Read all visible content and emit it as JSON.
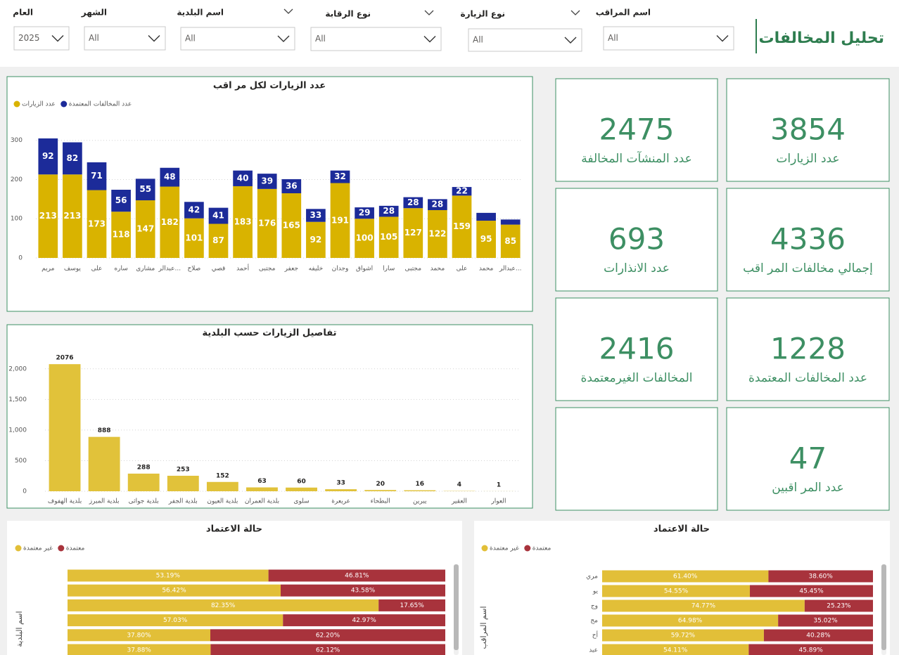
{
  "header": {
    "title": "تحليل المخالفات"
  },
  "filters": [
    {
      "label": "اسم المراقب",
      "value": "All"
    },
    {
      "label": "نوع الزيارة",
      "value": "All"
    },
    {
      "label": "نوع الرقابة",
      "value": "All"
    },
    {
      "label": "اسم البلدية",
      "value": "All"
    },
    {
      "label": "الشهر",
      "value": "All"
    },
    {
      "label": "العام",
      "value": "2025"
    }
  ],
  "cards": [
    {
      "value": 3854,
      "label": "عدد الزيارات"
    },
    {
      "value": 2475,
      "label": "عدد المنشآت المخالفة"
    },
    {
      "value": 4336,
      "label": "إجمالي مخالفات المر اقب"
    },
    {
      "value": 693,
      "label": "عدد الانذارات"
    },
    {
      "value": 1228,
      "label": "عدد المخالفات المعتمدة"
    },
    {
      "value": 2416,
      "label": "المخالفات الغيرمعتمدة"
    },
    {
      "value": 47,
      "label": "عدد المر اقبين"
    }
  ],
  "chart_data": [
    {
      "type": "bar",
      "title": "عدد الزيارات لكل مر اقب",
      "stacked": true,
      "grid": true,
      "categories": [
        "مريم",
        "يوسف",
        "على",
        "ساره",
        "مشارى",
        "عبدالر...",
        "صلاح",
        "قصي",
        "أحمد",
        "مجتبى",
        "جعفر",
        "خليفه",
        "وجدان",
        "اشواق",
        "سارا",
        "مجتبى",
        "محمد",
        "على",
        "محمد",
        "عبدالر..."
      ],
      "series": [
        {
          "name": "عدد الزيارات",
          "color": "#d9b300",
          "values": [
            213,
            213,
            173,
            118,
            147,
            182,
            101,
            87,
            183,
            176,
            165,
            92,
            191,
            100,
            105,
            127,
            122,
            159,
            95,
            85
          ]
        },
        {
          "name": "عدد المخالفات المعتمدة",
          "color": "#1c2b99",
          "values": [
            92,
            82,
            71,
            56,
            55,
            48,
            42,
            41,
            40,
            39,
            36,
            33,
            32,
            29,
            28,
            28,
            28,
            22,
            20,
            13
          ],
          "value_labels": [
            "92",
            "82",
            "71",
            "56",
            "55",
            "48",
            "42",
            "41",
            "40",
            "39",
            "36",
            "33",
            "32",
            "29",
            "28",
            "28",
            "28",
            "22",
            null,
            null
          ]
        }
      ],
      "ylim": [
        0,
        330
      ],
      "yticks": [
        0,
        100,
        200,
        300
      ]
    },
    {
      "type": "bar",
      "title": "تفاصيل الزيارات حسب البلدية",
      "grid": true,
      "color": "#e1c23a",
      "categories": [
        "بلدية الهفوف",
        "بلدية المبرز",
        "بلدية جواثى",
        "بلدية الجفر",
        "بلدية العيون",
        "بلدية العمران",
        "سلوى",
        "عريعرة",
        "البطحاء",
        "يبرين",
        "العقير",
        "العوار"
      ],
      "values": [
        2076,
        888,
        288,
        253,
        152,
        63,
        60,
        33,
        20,
        16,
        4,
        1
      ],
      "ylim": [
        0,
        2250
      ],
      "yticks": [
        0,
        500,
        {
          "value": 1000,
          "label": "1,000"
        },
        {
          "value": 1500,
          "label": "1,500"
        },
        {
          "value": 2000,
          "label": "2,000"
        }
      ]
    },
    {
      "type": "hbar",
      "title": "حالة الاعتماد",
      "stacked": true,
      "y_label": "اسم البلدية",
      "xlim": [
        0,
        100
      ],
      "series": [
        {
          "name": "غير معتمدة",
          "color": "#e2bf38",
          "values": [
            53.19,
            56.42,
            82.35,
            57.03,
            37.8,
            37.88
          ],
          "value_labels": [
            "53.19%",
            "56.42%",
            "82.35%",
            "57.03%",
            "37.80%",
            "37.88%"
          ]
        },
        {
          "name": "معتمدة",
          "color": "#a8333c",
          "values": [
            46.81,
            43.58,
            17.65,
            42.97,
            62.2,
            62.12
          ],
          "value_labels": [
            "46.81%",
            "43.58%",
            "17.65%",
            "42.97%",
            "62.20%",
            "62.12%"
          ]
        }
      ]
    },
    {
      "type": "hbar",
      "title": "حالة الاعتماد",
      "stacked": true,
      "y_label": "اسم المراقب",
      "xlim": [
        0,
        100
      ],
      "categories": [
        "مري",
        "يو",
        "وج",
        "مج",
        "أح",
        "عبد"
      ],
      "series": [
        {
          "name": "غير معتمدة",
          "color": "#e2bf38",
          "values": [
            61.4,
            54.55,
            74.77,
            64.98,
            59.72,
            54.11
          ],
          "value_labels": [
            "61.40%",
            "54.55%",
            "74.77%",
            "64.98%",
            "59.72%",
            "54.11%"
          ]
        },
        {
          "name": "معتمدة",
          "color": "#a8333c",
          "values": [
            38.6,
            45.45,
            25.23,
            35.02,
            40.28,
            45.89
          ],
          "value_labels": [
            "38.60%",
            "45.45%",
            "25.23%",
            "35.02%",
            "40.28%",
            "45.89%"
          ]
        }
      ]
    }
  ]
}
